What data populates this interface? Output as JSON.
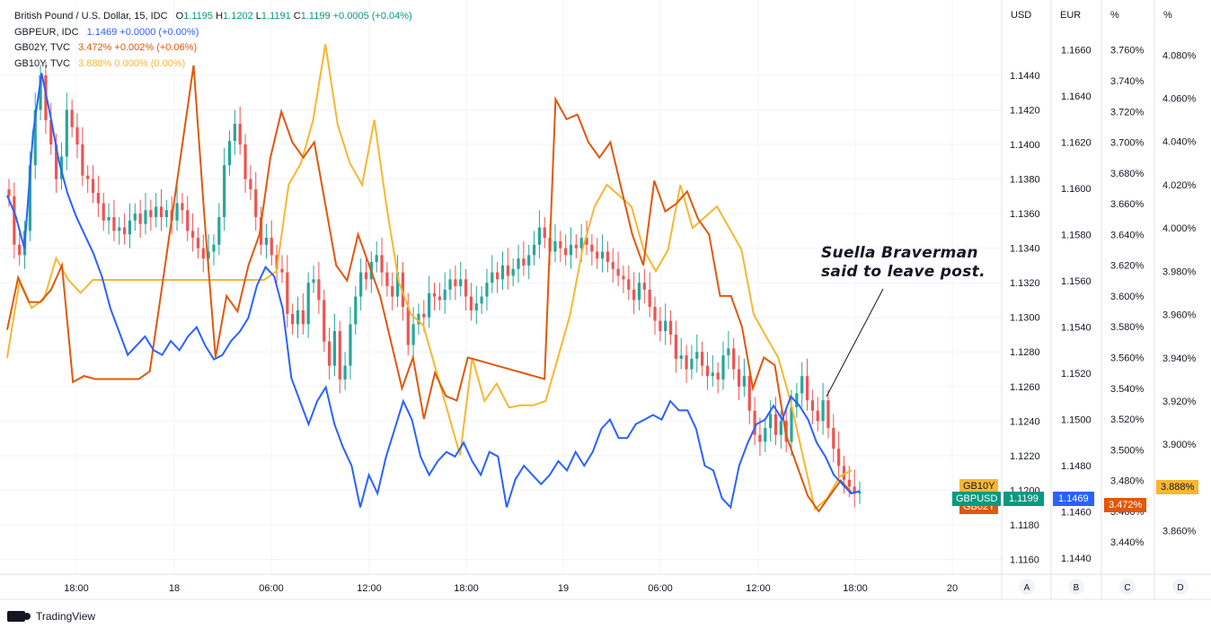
{
  "legend": {
    "main_symbol": "British Pound / U.S. Dollar, 15, IDC",
    "open_label": "O",
    "open": "1.1195",
    "high_label": "H",
    "high": "1.1202",
    "low_label": "L",
    "low": "1.1191",
    "close_label": "C",
    "close": "1.1199",
    "change": "+0.0005 (+0.04%)",
    "series": [
      {
        "label": "GBPEUR, IDC",
        "value": "1.1469",
        "change": "+0.0000 (+0.00%)"
      },
      {
        "label": "GB02Y, TVC",
        "value": "3.472%",
        "change": "+0.002% (+0.06%)"
      },
      {
        "label": "GB10Y, TVC",
        "value": "3.888%",
        "change": "0.000% (0.00%)"
      }
    ]
  },
  "axis_headers": {
    "usd": "USD",
    "eur": "EUR",
    "pct1": "%",
    "pct2": "%"
  },
  "axis_letters": [
    "A",
    "B",
    "C",
    "D"
  ],
  "colors": {
    "up": "#26a69a",
    "down": "#ef5350",
    "gbpeur": "#2962ff",
    "gb02y": "#e0580b",
    "gb10y": "#f7b731"
  },
  "annotation": {
    "line1": "Suella Braverman",
    "line2": "said to leave post."
  },
  "badges": {
    "gb10y_name": "GB10Y",
    "gb02y_name": "GB02Y",
    "gbpusd_name": "GBPUSD",
    "gbpusd_value": "1.1199",
    "gbpeur_value": "1.1469",
    "gb02y_value": "3.472%",
    "gb10y_value": "3.888%"
  },
  "footer": {
    "brand": "TradingView"
  },
  "chart_data": {
    "type": "line",
    "x_tick_labels": [
      "18:00",
      "18",
      "06:00",
      "12:00",
      "18:00",
      "19",
      "06:00",
      "12:00",
      "18:00",
      "20"
    ],
    "axes": {
      "usd": {
        "ticks": [
          "1.1160",
          "1.1180",
          "1.1200",
          "1.1220",
          "1.1240",
          "1.1260",
          "1.1280",
          "1.1300",
          "1.1320",
          "1.1340",
          "1.1360",
          "1.1380",
          "1.1400",
          "1.1420",
          "1.1440"
        ],
        "range": [
          1.1154,
          1.1468
        ]
      },
      "eur": {
        "ticks": [
          "1.1440",
          "1.1460",
          "1.1480",
          "1.1500",
          "1.1520",
          "1.1540",
          "1.1560",
          "1.1580",
          "1.1600",
          "1.1620",
          "1.1640",
          "1.1660"
        ],
        "range": [
          1.1435,
          1.167
        ]
      },
      "gb02y": {
        "ticks": [
          "3.440%",
          "3.460%",
          "3.480%",
          "3.500%",
          "3.520%",
          "3.540%",
          "3.560%",
          "3.580%",
          "3.600%",
          "3.620%",
          "3.640%",
          "3.660%",
          "3.680%",
          "3.700%",
          "3.720%",
          "3.740%",
          "3.760%"
        ],
        "range": [
          3.422,
          3.775
        ]
      },
      "gb10y": {
        "ticks": [
          "3.860%",
          "3.880%",
          "3.900%",
          "3.920%",
          "3.940%",
          "3.960%",
          "3.980%",
          "4.000%",
          "4.020%",
          "4.040%",
          "4.060%",
          "4.080%"
        ],
        "range": [
          3.842,
          4.093
        ]
      }
    },
    "gbpusd_close": [
      1.137,
      1.1342,
      1.1336,
      1.135,
      1.1388,
      1.142,
      1.144,
      1.1414,
      1.14,
      1.138,
      1.1393,
      1.142,
      1.141,
      1.14,
      1.1382,
      1.138,
      1.1372,
      1.1366,
      1.1356,
      1.1358,
      1.135,
      1.1352,
      1.1348,
      1.1356,
      1.136,
      1.1354,
      1.1362,
      1.1358,
      1.1364,
      1.1358,
      1.1362,
      1.1356,
      1.1366,
      1.1362,
      1.135,
      1.1346,
      1.134,
      1.1334,
      1.1338,
      1.1342,
      1.1358,
      1.1388,
      1.1402,
      1.1412,
      1.14,
      1.138,
      1.1374,
      1.1358,
      1.1342,
      1.1346,
      1.1336,
      1.1328,
      1.1326,
      1.1302,
      1.1296,
      1.1304,
      1.1296,
      1.132,
      1.1322,
      1.131,
      1.1286,
      1.1272,
      1.1292,
      1.1264,
      1.1272,
      1.1296,
      1.1312,
      1.1326,
      1.1322,
      1.1332,
      1.1336,
      1.1326,
      1.1318,
      1.1312,
      1.1326,
      1.1306,
      1.1284,
      1.1296,
      1.1302,
      1.13,
      1.1314,
      1.1312,
      1.131,
      1.1316,
      1.1322,
      1.1318,
      1.1322,
      1.1312,
      1.1304,
      1.1308,
      1.1312,
      1.132,
      1.1326,
      1.1322,
      1.133,
      1.1324,
      1.1328,
      1.1334,
      1.133,
      1.1336,
      1.1342,
      1.1352,
      1.1346,
      1.1338,
      1.1344,
      1.134,
      1.1336,
      1.1342,
      1.134,
      1.1346,
      1.1342,
      1.1338,
      1.1334,
      1.1338,
      1.1332,
      1.1328,
      1.1324,
      1.1322,
      1.1316,
      1.131,
      1.132,
      1.1316,
      1.1306,
      1.1298,
      1.1292,
      1.1298,
      1.129,
      1.1276,
      1.1278,
      1.127,
      1.1276,
      1.128,
      1.1272,
      1.1266,
      1.1268,
      1.1264,
      1.1278,
      1.1282,
      1.127,
      1.126,
      1.1266,
      1.1246,
      1.1232,
      1.1228,
      1.1236,
      1.1244,
      1.1232,
      1.124,
      1.1228,
      1.1248,
      1.1256,
      1.1266,
      1.1252,
      1.1246,
      1.124,
      1.1252,
      1.1236,
      1.1224,
      1.1214,
      1.1206,
      1.1202,
      1.1198,
      1.1199
    ],
    "series": [
      {
        "name": "GBPEUR, IDC",
        "axis": "eur",
        "values": [
          1.1597,
          1.1588,
          1.1574,
          1.1624,
          1.165,
          1.1632,
          1.1612,
          1.1598,
          1.1588,
          1.158,
          1.1572,
          1.1562,
          1.1548,
          1.1538,
          1.1528,
          1.1532,
          1.1536,
          1.153,
          1.1528,
          1.1534,
          1.153,
          1.1536,
          1.154,
          1.1532,
          1.1526,
          1.1528,
          1.1534,
          1.1538,
          1.1544,
          1.1558,
          1.1566,
          1.1562,
          1.1548,
          1.1518,
          1.1508,
          1.1498,
          1.1508,
          1.1514,
          1.1498,
          1.1488,
          1.148,
          1.1462,
          1.1476,
          1.1468,
          1.1484,
          1.1496,
          1.1508,
          1.15,
          1.1484,
          1.1476,
          1.1482,
          1.1486,
          1.1484,
          1.149,
          1.1482,
          1.1476,
          1.1486,
          1.1484,
          1.1462,
          1.1474,
          1.148,
          1.1476,
          1.1472,
          1.1476,
          1.1482,
          1.1478,
          1.1486,
          1.148,
          1.1486,
          1.1496,
          1.15,
          1.1492,
          1.1492,
          1.1498,
          1.15,
          1.1502,
          1.15,
          1.1508,
          1.1504,
          1.1504,
          1.1496,
          1.148,
          1.1478,
          1.1466,
          1.1462,
          1.148,
          1.149,
          1.1498,
          1.15,
          1.1506,
          1.15,
          1.151,
          1.1506,
          1.15,
          1.149,
          1.1484,
          1.1476,
          1.1472,
          1.1468,
          1.1469
        ]
      },
      {
        "name": "GB02Y, TVC",
        "axis": "gb02y",
        "values": [
          3.578,
          3.612,
          3.596,
          3.596,
          3.604,
          3.62,
          3.544,
          3.548,
          3.546,
          3.546,
          3.546,
          3.546,
          3.546,
          3.551,
          3.6,
          3.65,
          3.7,
          3.75,
          3.65,
          3.56,
          3.6,
          3.59,
          3.62,
          3.64,
          3.69,
          3.72,
          3.7,
          3.69,
          3.7,
          3.66,
          3.62,
          3.61,
          3.64,
          3.62,
          3.6,
          3.57,
          3.54,
          3.56,
          3.52,
          3.55,
          3.535,
          3.532,
          3.56,
          3.558,
          3.556,
          3.554,
          3.552,
          3.55,
          3.548,
          3.546,
          3.728,
          3.715,
          3.718,
          3.7,
          3.69,
          3.7,
          3.67,
          3.64,
          3.62,
          3.675,
          3.655,
          3.66,
          3.668,
          3.65,
          3.64,
          3.6,
          3.6,
          3.58,
          3.54,
          3.56,
          3.555,
          3.51,
          3.49,
          3.47,
          3.46,
          3.47,
          3.48,
          3.472
        ]
      },
      {
        "name": "GB10Y, TVC",
        "axis": "gb10y",
        "values": [
          3.94,
          3.975,
          3.963,
          3.967,
          3.986,
          3.976,
          3.97,
          3.976,
          3.976,
          3.976,
          3.976,
          3.976,
          3.976,
          3.976,
          3.976,
          3.976,
          3.976,
          3.976,
          3.976,
          3.976,
          3.976,
          3.976,
          3.98,
          4.02,
          4.03,
          4.05,
          4.085,
          4.048,
          4.03,
          4.02,
          4.05,
          4.01,
          3.975,
          3.96,
          3.955,
          3.935,
          3.915,
          3.895,
          3.94,
          3.92,
          3.928,
          3.917,
          3.918,
          3.918,
          3.92,
          3.94,
          3.96,
          3.99,
          4.01,
          4.02,
          4.015,
          4.01,
          3.99,
          3.98,
          3.99,
          4.02,
          4.0,
          4.005,
          4.01,
          4.0,
          3.99,
          3.96,
          3.95,
          3.94,
          3.92,
          3.895,
          3.87,
          3.875,
          3.885,
          3.888
        ]
      }
    ]
  }
}
